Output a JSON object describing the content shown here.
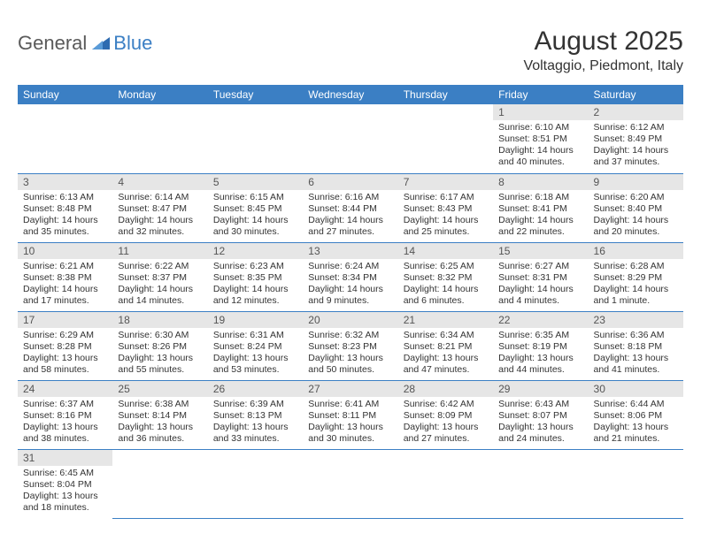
{
  "logo": {
    "general": "General",
    "blue": "Blue"
  },
  "title": "August 2025",
  "location": "Voltaggio, Piedmont, Italy",
  "colors": {
    "header_bg": "#3b7fc4",
    "header_text": "#ffffff",
    "daynum_bg": "#e6e6e6",
    "row_border": "#3b7fc4",
    "body_text": "#333333"
  },
  "day_headers": [
    "Sunday",
    "Monday",
    "Tuesday",
    "Wednesday",
    "Thursday",
    "Friday",
    "Saturday"
  ],
  "weeks": [
    [
      null,
      null,
      null,
      null,
      null,
      {
        "n": "1",
        "sr": "Sunrise: 6:10 AM",
        "ss": "Sunset: 8:51 PM",
        "dl": "Daylight: 14 hours and 40 minutes."
      },
      {
        "n": "2",
        "sr": "Sunrise: 6:12 AM",
        "ss": "Sunset: 8:49 PM",
        "dl": "Daylight: 14 hours and 37 minutes."
      }
    ],
    [
      {
        "n": "3",
        "sr": "Sunrise: 6:13 AM",
        "ss": "Sunset: 8:48 PM",
        "dl": "Daylight: 14 hours and 35 minutes."
      },
      {
        "n": "4",
        "sr": "Sunrise: 6:14 AM",
        "ss": "Sunset: 8:47 PM",
        "dl": "Daylight: 14 hours and 32 minutes."
      },
      {
        "n": "5",
        "sr": "Sunrise: 6:15 AM",
        "ss": "Sunset: 8:45 PM",
        "dl": "Daylight: 14 hours and 30 minutes."
      },
      {
        "n": "6",
        "sr": "Sunrise: 6:16 AM",
        "ss": "Sunset: 8:44 PM",
        "dl": "Daylight: 14 hours and 27 minutes."
      },
      {
        "n": "7",
        "sr": "Sunrise: 6:17 AM",
        "ss": "Sunset: 8:43 PM",
        "dl": "Daylight: 14 hours and 25 minutes."
      },
      {
        "n": "8",
        "sr": "Sunrise: 6:18 AM",
        "ss": "Sunset: 8:41 PM",
        "dl": "Daylight: 14 hours and 22 minutes."
      },
      {
        "n": "9",
        "sr": "Sunrise: 6:20 AM",
        "ss": "Sunset: 8:40 PM",
        "dl": "Daylight: 14 hours and 20 minutes."
      }
    ],
    [
      {
        "n": "10",
        "sr": "Sunrise: 6:21 AM",
        "ss": "Sunset: 8:38 PM",
        "dl": "Daylight: 14 hours and 17 minutes."
      },
      {
        "n": "11",
        "sr": "Sunrise: 6:22 AM",
        "ss": "Sunset: 8:37 PM",
        "dl": "Daylight: 14 hours and 14 minutes."
      },
      {
        "n": "12",
        "sr": "Sunrise: 6:23 AM",
        "ss": "Sunset: 8:35 PM",
        "dl": "Daylight: 14 hours and 12 minutes."
      },
      {
        "n": "13",
        "sr": "Sunrise: 6:24 AM",
        "ss": "Sunset: 8:34 PM",
        "dl": "Daylight: 14 hours and 9 minutes."
      },
      {
        "n": "14",
        "sr": "Sunrise: 6:25 AM",
        "ss": "Sunset: 8:32 PM",
        "dl": "Daylight: 14 hours and 6 minutes."
      },
      {
        "n": "15",
        "sr": "Sunrise: 6:27 AM",
        "ss": "Sunset: 8:31 PM",
        "dl": "Daylight: 14 hours and 4 minutes."
      },
      {
        "n": "16",
        "sr": "Sunrise: 6:28 AM",
        "ss": "Sunset: 8:29 PM",
        "dl": "Daylight: 14 hours and 1 minute."
      }
    ],
    [
      {
        "n": "17",
        "sr": "Sunrise: 6:29 AM",
        "ss": "Sunset: 8:28 PM",
        "dl": "Daylight: 13 hours and 58 minutes."
      },
      {
        "n": "18",
        "sr": "Sunrise: 6:30 AM",
        "ss": "Sunset: 8:26 PM",
        "dl": "Daylight: 13 hours and 55 minutes."
      },
      {
        "n": "19",
        "sr": "Sunrise: 6:31 AM",
        "ss": "Sunset: 8:24 PM",
        "dl": "Daylight: 13 hours and 53 minutes."
      },
      {
        "n": "20",
        "sr": "Sunrise: 6:32 AM",
        "ss": "Sunset: 8:23 PM",
        "dl": "Daylight: 13 hours and 50 minutes."
      },
      {
        "n": "21",
        "sr": "Sunrise: 6:34 AM",
        "ss": "Sunset: 8:21 PM",
        "dl": "Daylight: 13 hours and 47 minutes."
      },
      {
        "n": "22",
        "sr": "Sunrise: 6:35 AM",
        "ss": "Sunset: 8:19 PM",
        "dl": "Daylight: 13 hours and 44 minutes."
      },
      {
        "n": "23",
        "sr": "Sunrise: 6:36 AM",
        "ss": "Sunset: 8:18 PM",
        "dl": "Daylight: 13 hours and 41 minutes."
      }
    ],
    [
      {
        "n": "24",
        "sr": "Sunrise: 6:37 AM",
        "ss": "Sunset: 8:16 PM",
        "dl": "Daylight: 13 hours and 38 minutes."
      },
      {
        "n": "25",
        "sr": "Sunrise: 6:38 AM",
        "ss": "Sunset: 8:14 PM",
        "dl": "Daylight: 13 hours and 36 minutes."
      },
      {
        "n": "26",
        "sr": "Sunrise: 6:39 AM",
        "ss": "Sunset: 8:13 PM",
        "dl": "Daylight: 13 hours and 33 minutes."
      },
      {
        "n": "27",
        "sr": "Sunrise: 6:41 AM",
        "ss": "Sunset: 8:11 PM",
        "dl": "Daylight: 13 hours and 30 minutes."
      },
      {
        "n": "28",
        "sr": "Sunrise: 6:42 AM",
        "ss": "Sunset: 8:09 PM",
        "dl": "Daylight: 13 hours and 27 minutes."
      },
      {
        "n": "29",
        "sr": "Sunrise: 6:43 AM",
        "ss": "Sunset: 8:07 PM",
        "dl": "Daylight: 13 hours and 24 minutes."
      },
      {
        "n": "30",
        "sr": "Sunrise: 6:44 AM",
        "ss": "Sunset: 8:06 PM",
        "dl": "Daylight: 13 hours and 21 minutes."
      }
    ],
    [
      {
        "n": "31",
        "sr": "Sunrise: 6:45 AM",
        "ss": "Sunset: 8:04 PM",
        "dl": "Daylight: 13 hours and 18 minutes."
      },
      null,
      null,
      null,
      null,
      null,
      null
    ]
  ]
}
